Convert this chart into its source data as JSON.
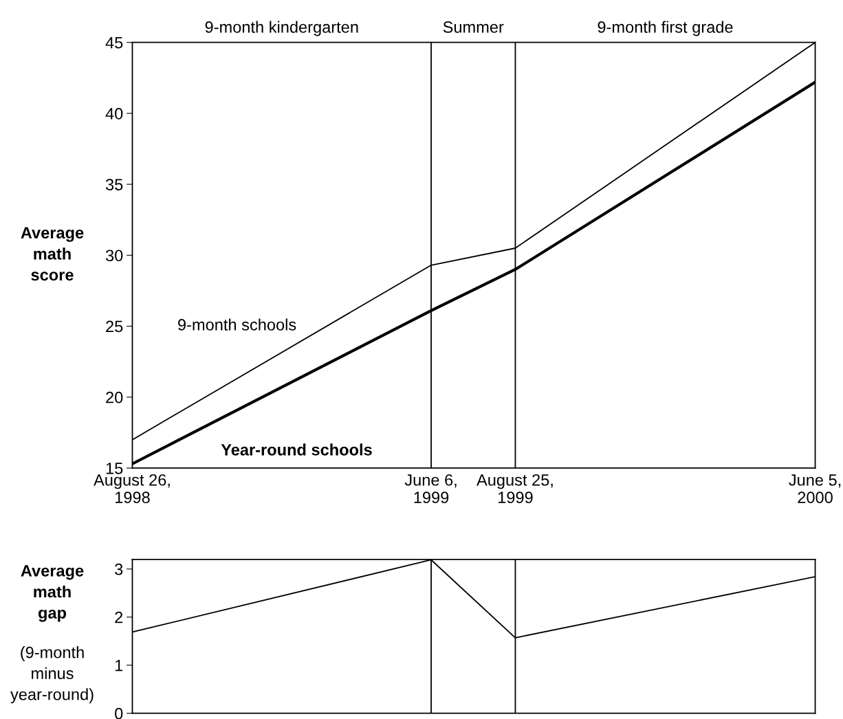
{
  "chart_data": [
    {
      "type": "line",
      "ylabel": "Average\nmath\nscore",
      "legend": false,
      "grid": false,
      "marker": "none",
      "line_style": "solid",
      "x": [
        "1998-08-26",
        "1999-06-06",
        "1999-08-25",
        "2000-06-05"
      ],
      "series": [
        {
          "name": "9-month schools",
          "color": "#000000",
          "values": [
            17.0,
            29.3,
            30.5,
            45.0
          ]
        },
        {
          "name": "Year-round schools",
          "color": "#000000",
          "values": [
            15.3,
            26.1,
            29.0,
            42.2
          ]
        }
      ],
      "xlim": [
        "1998-08-26",
        "2000-06-05"
      ],
      "xticks": [
        {
          "value": "1998-08-26",
          "label": "August 26,\n1998"
        },
        {
          "value": "1999-06-06",
          "label": "June 6,\n1999"
        },
        {
          "value": "1999-08-25",
          "label": "August 25,\n1999"
        },
        {
          "value": "2000-06-05",
          "label": "June 5,\n2000"
        }
      ],
      "ylim": [
        15,
        45
      ],
      "yticks": [
        15,
        20,
        25,
        30,
        35,
        40,
        45
      ],
      "ref_lines": [
        {
          "axis": "x",
          "value": "1999-06-06",
          "color": "#000000"
        },
        {
          "axis": "x",
          "value": "1999-08-25",
          "color": "#000000"
        }
      ],
      "annotations": [
        "9-month kindergarten",
        "Summer",
        "9-month first grade"
      ]
    },
    {
      "type": "line",
      "ylabel": "Average\nmath\ngap",
      "annotations": [
        "(9-month\nminus\nyear-round)"
      ],
      "legend": false,
      "grid": false,
      "marker": "none",
      "line_style": "solid",
      "tick_labels": "y",
      "x": [
        "1998-08-26",
        "1999-06-06",
        "1999-08-25",
        "2000-06-05"
      ],
      "series": [
        {
          "color": "#000000",
          "values": [
            1.69,
            3.19,
            1.57,
            2.84
          ]
        }
      ],
      "xlim": [
        "1998-08-26",
        "2000-06-05"
      ],
      "ylim": [
        0,
        3.2
      ],
      "yticks": [
        0,
        1,
        2,
        3
      ],
      "ref_lines": [
        {
          "axis": "x",
          "value": "1999-06-06",
          "color": "#000000"
        },
        {
          "axis": "x",
          "value": "1999-08-25",
          "color": "#000000"
        }
      ]
    }
  ]
}
